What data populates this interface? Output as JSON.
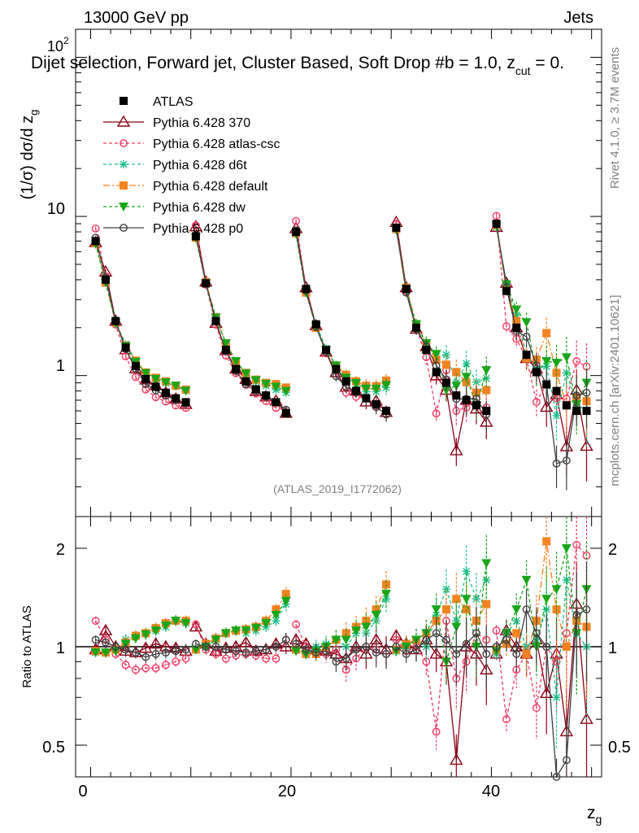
{
  "header": {
    "energy": "13000 GeV pp",
    "category": "Jets",
    "title": "Dijet selection, Forward jet, Cluster Based, Soft Drop #b = 1.0, z",
    "title_sub": "cut",
    "title_tail": " = 0.",
    "rivet": "Rivet 4.1.0, ≥ 3.7M events",
    "source": "mcplots.cern.ch [arXiv:2401.10621]",
    "analysis": "(ATLAS_2019_I1772062)"
  },
  "axes": {
    "ylabel_main": "(1/σ) dσ/d z",
    "ylabel_main_sub": "g",
    "ylabel_ratio": "Ratio to ATLAS",
    "xlabel": "z",
    "xlabel_sub": "g",
    "main_ticks": [
      "10",
      "1"
    ],
    "top_tick": "10",
    "top_tick_sup": "2",
    "ratio_ticks": [
      "2",
      "1",
      "0.5"
    ],
    "x_ticks": [
      "0",
      "20",
      "40"
    ]
  },
  "legend": [
    {
      "label": "ATLAS",
      "color": "#000000",
      "marker": "square",
      "dash": ""
    },
    {
      "label": "Pythia 6.428 370",
      "color": "#8b0015",
      "marker": "triangle-open",
      "dash": ""
    },
    {
      "label": "Pythia 6.428 atlas-csc",
      "color": "#f03a62",
      "marker": "circle-open",
      "dash": "4,3"
    },
    {
      "label": "Pythia 6.428 d6t",
      "color": "#1fbf8f",
      "marker": "star",
      "dash": "4,3"
    },
    {
      "label": "Pythia 6.428 default",
      "color": "#f58220",
      "marker": "square",
      "dash": "8,3,2,3"
    },
    {
      "label": "Pythia 6.428 dw",
      "color": "#19a619",
      "marker": "triangle-down",
      "dash": "4,3"
    },
    {
      "label": "Pythia 6.428 p0",
      "color": "#404040",
      "marker": "circle-open",
      "dash": ""
    }
  ],
  "chart_data": {
    "type": "line",
    "xlim": [
      -1.5,
      51
    ],
    "main_ylim": [
      0.13,
      150
    ],
    "main_yscale": "log",
    "ratio_ylim": [
      0.4,
      2.5
    ],
    "ratio_yscale": "log",
    "x": [
      0.5,
      1.5,
      2.5,
      3.5,
      4.5,
      5.5,
      6.5,
      7.5,
      8.5,
      9.5,
      10.5,
      11.5,
      12.5,
      13.5,
      14.5,
      15.5,
      16.5,
      17.5,
      18.5,
      19.5,
      20.5,
      21.5,
      22.5,
      23.5,
      24.5,
      25.5,
      26.5,
      27.5,
      28.5,
      29.5,
      30.5,
      31.5,
      32.5,
      33.5,
      34.5,
      35.5,
      36.5,
      37.5,
      38.5,
      39.5,
      40.5,
      41.5,
      42.5,
      43.5,
      44.5,
      45.5,
      46.5,
      47.5,
      48.5,
      49.5
    ],
    "atlas": [
      7.0,
      4.0,
      2.2,
      1.5,
      1.15,
      0.95,
      0.85,
      0.78,
      0.72,
      0.68,
      7.5,
      3.8,
      2.2,
      1.45,
      1.1,
      0.92,
      0.82,
      0.75,
      0.68,
      0.58,
      8.0,
      3.5,
      2.1,
      1.45,
      1.1,
      0.92,
      0.8,
      0.72,
      0.66,
      0.6,
      8.5,
      3.5,
      2.0,
      1.45,
      1.05,
      0.9,
      0.75,
      0.7,
      0.65,
      0.6,
      9.0,
      3.4,
      2.0,
      1.35,
      1.05,
      0.88,
      0.8,
      0.65,
      0.6,
      0.6
    ],
    "atlas_err": 0.06,
    "series": [
      {
        "name": "Pythia 6.428 370",
        "ratio": [
          0.98,
          1.12,
          1.0,
          0.97,
          0.96,
          0.99,
          1.02,
          1.0,
          0.99,
          0.97,
          1.15,
          1.02,
          0.97,
          0.99,
          1.0,
          1.03,
          0.97,
          0.98,
          1.02,
          1.0,
          1.05,
          1.02,
          0.98,
          0.97,
          0.95,
          0.92,
          1.0,
          0.95,
          1.05,
          0.98,
          1.08,
          1.02,
          0.98,
          1.05,
          0.95,
          0.9,
          0.45,
          1.0,
          0.95,
          0.85,
          0.95,
          1.12,
          1.0,
          0.95,
          1.05,
          0.72,
          0.95,
          0.55,
          1.35,
          0.6
        ],
        "err": [
          0.03,
          0.04,
          0.04,
          0.04,
          0.04,
          0.04,
          0.04,
          0.04,
          0.04,
          0.04,
          0.03,
          0.04,
          0.04,
          0.04,
          0.04,
          0.04,
          0.04,
          0.04,
          0.04,
          0.05,
          0.03,
          0.04,
          0.05,
          0.06,
          0.07,
          0.08,
          0.08,
          0.1,
          0.1,
          0.1,
          0.04,
          0.06,
          0.08,
          0.1,
          0.12,
          0.15,
          0.2,
          0.2,
          0.2,
          0.22,
          0.04,
          0.08,
          0.12,
          0.15,
          0.2,
          0.25,
          0.3,
          0.35,
          0.35,
          0.4
        ]
      },
      {
        "name": "Pythia 6.428 atlas-csc",
        "ratio": [
          1.2,
          1.05,
          0.95,
          0.88,
          0.85,
          0.86,
          0.86,
          0.88,
          0.9,
          0.92,
          1.17,
          0.98,
          0.95,
          0.92,
          0.94,
          0.95,
          0.94,
          0.92,
          0.92,
          1.05,
          1.17,
          1.0,
          0.97,
          0.95,
          0.98,
          0.85,
          0.92,
          1.0,
          0.98,
          0.95,
          1.05,
          0.97,
          1.0,
          0.9,
          0.55,
          1.2,
          0.8,
          0.9,
          1.1,
          1.05,
          1.12,
          0.6,
          0.85,
          0.95,
          0.65,
          1.0,
          0.9,
          1.1,
          2.05,
          1.9
        ],
        "err": [
          0.03,
          0.04,
          0.04,
          0.04,
          0.04,
          0.04,
          0.04,
          0.04,
          0.04,
          0.04,
          0.03,
          0.04,
          0.04,
          0.04,
          0.04,
          0.04,
          0.04,
          0.04,
          0.04,
          0.05,
          0.03,
          0.04,
          0.05,
          0.06,
          0.07,
          0.08,
          0.08,
          0.1,
          0.1,
          0.1,
          0.04,
          0.06,
          0.08,
          0.1,
          0.12,
          0.15,
          0.2,
          0.2,
          0.2,
          0.22,
          0.04,
          0.08,
          0.12,
          0.15,
          0.2,
          0.25,
          0.3,
          0.35,
          0.35,
          0.4
        ]
      },
      {
        "name": "Pythia 6.428 d6t",
        "ratio": [
          0.96,
          0.96,
          0.98,
          1.05,
          1.08,
          1.1,
          1.12,
          1.15,
          1.2,
          1.18,
          0.98,
          1.0,
          1.05,
          1.1,
          1.12,
          1.1,
          1.12,
          1.15,
          1.2,
          1.35,
          0.98,
          0.95,
          1.0,
          1.02,
          1.05,
          1.0,
          1.1,
          1.1,
          1.2,
          1.4,
          0.97,
          1.0,
          1.05,
          1.0,
          1.25,
          1.5,
          1.2,
          1.7,
          1.4,
          1.6,
          0.95,
          1.1,
          1.2,
          1.0,
          1.05,
          1.3,
          0.7,
          1.6,
          1.1,
          1.0
        ],
        "err": [
          0.03,
          0.04,
          0.04,
          0.04,
          0.04,
          0.04,
          0.04,
          0.04,
          0.04,
          0.04,
          0.03,
          0.04,
          0.04,
          0.04,
          0.04,
          0.04,
          0.04,
          0.04,
          0.04,
          0.05,
          0.03,
          0.04,
          0.05,
          0.06,
          0.07,
          0.08,
          0.08,
          0.1,
          0.1,
          0.1,
          0.04,
          0.06,
          0.08,
          0.1,
          0.12,
          0.15,
          0.2,
          0.2,
          0.2,
          0.22,
          0.04,
          0.08,
          0.12,
          0.15,
          0.2,
          0.25,
          0.3,
          0.35,
          0.35,
          0.4
        ]
      },
      {
        "name": "Pythia 6.428 default",
        "ratio": [
          0.97,
          0.96,
          0.98,
          1.03,
          1.08,
          1.1,
          1.14,
          1.18,
          1.2,
          1.2,
          0.98,
          1.02,
          1.06,
          1.1,
          1.12,
          1.13,
          1.15,
          1.2,
          1.3,
          1.45,
          0.98,
          0.95,
          0.95,
          1.0,
          1.05,
          1.1,
          1.15,
          1.2,
          1.3,
          1.55,
          0.98,
          1.02,
          1.05,
          1.1,
          1.2,
          1.3,
          1.4,
          1.3,
          1.2,
          1.35,
          0.98,
          1.02,
          1.1,
          0.95,
          1.2,
          2.1,
          1.3,
          1.0,
          1.2,
          1.15
        ],
        "err": [
          0.03,
          0.04,
          0.04,
          0.04,
          0.04,
          0.04,
          0.04,
          0.04,
          0.04,
          0.04,
          0.03,
          0.04,
          0.04,
          0.04,
          0.04,
          0.04,
          0.04,
          0.04,
          0.04,
          0.05,
          0.03,
          0.04,
          0.05,
          0.06,
          0.07,
          0.08,
          0.08,
          0.1,
          0.1,
          0.1,
          0.04,
          0.06,
          0.08,
          0.1,
          0.12,
          0.15,
          0.2,
          0.2,
          0.2,
          0.22,
          0.04,
          0.08,
          0.12,
          0.15,
          0.2,
          0.25,
          0.3,
          0.35,
          0.35,
          0.4
        ]
      },
      {
        "name": "Pythia 6.428 dw",
        "ratio": [
          0.96,
          0.96,
          0.97,
          1.02,
          1.06,
          1.09,
          1.12,
          1.16,
          1.2,
          1.18,
          0.98,
          1.0,
          1.05,
          1.1,
          1.12,
          1.12,
          1.14,
          1.18,
          1.25,
          1.38,
          0.97,
          0.95,
          0.97,
          1.0,
          1.05,
          1.05,
          1.12,
          1.15,
          1.25,
          1.45,
          0.97,
          1.0,
          1.05,
          1.1,
          1.3,
          0.9,
          1.15,
          1.4,
          1.0,
          1.8,
          0.97,
          1.1,
          1.3,
          1.6,
          1.0,
          1.4,
          1.5,
          2.0,
          1.1,
          1.5
        ],
        "err": [
          0.03,
          0.04,
          0.04,
          0.04,
          0.04,
          0.04,
          0.04,
          0.04,
          0.04,
          0.04,
          0.03,
          0.04,
          0.04,
          0.04,
          0.04,
          0.04,
          0.04,
          0.04,
          0.04,
          0.05,
          0.03,
          0.04,
          0.05,
          0.06,
          0.07,
          0.08,
          0.08,
          0.1,
          0.1,
          0.1,
          0.04,
          0.06,
          0.08,
          0.1,
          0.12,
          0.15,
          0.2,
          0.2,
          0.2,
          0.22,
          0.04,
          0.08,
          0.12,
          0.15,
          0.2,
          0.25,
          0.3,
          0.35,
          0.35,
          0.4
        ]
      },
      {
        "name": "Pythia 6.428 p0",
        "ratio": [
          1.05,
          1.03,
          1.0,
          0.98,
          0.96,
          0.93,
          0.95,
          0.96,
          0.97,
          0.98,
          1.02,
          1.0,
          1.0,
          0.98,
          0.97,
          0.96,
          0.97,
          0.98,
          1.0,
          1.05,
          1.02,
          0.98,
          0.96,
          0.97,
          0.9,
          0.92,
          0.98,
          1.0,
          0.96,
          0.95,
          1.0,
          0.95,
          0.98,
          1.05,
          1.1,
          1.05,
          0.95,
          1.02,
          1.1,
          0.95,
          1.0,
          1.05,
          0.95,
          1.3,
          1.1,
          1.0,
          0.35,
          0.45,
          1.25,
          1.3
        ],
        "err": [
          0.03,
          0.04,
          0.04,
          0.04,
          0.04,
          0.04,
          0.04,
          0.04,
          0.04,
          0.04,
          0.03,
          0.04,
          0.04,
          0.04,
          0.04,
          0.04,
          0.04,
          0.04,
          0.04,
          0.05,
          0.03,
          0.04,
          0.05,
          0.06,
          0.07,
          0.08,
          0.08,
          0.1,
          0.1,
          0.1,
          0.04,
          0.06,
          0.08,
          0.1,
          0.12,
          0.15,
          0.2,
          0.2,
          0.2,
          0.22,
          0.04,
          0.08,
          0.12,
          0.15,
          0.2,
          0.25,
          0.3,
          0.35,
          0.35,
          0.4
        ]
      }
    ]
  }
}
